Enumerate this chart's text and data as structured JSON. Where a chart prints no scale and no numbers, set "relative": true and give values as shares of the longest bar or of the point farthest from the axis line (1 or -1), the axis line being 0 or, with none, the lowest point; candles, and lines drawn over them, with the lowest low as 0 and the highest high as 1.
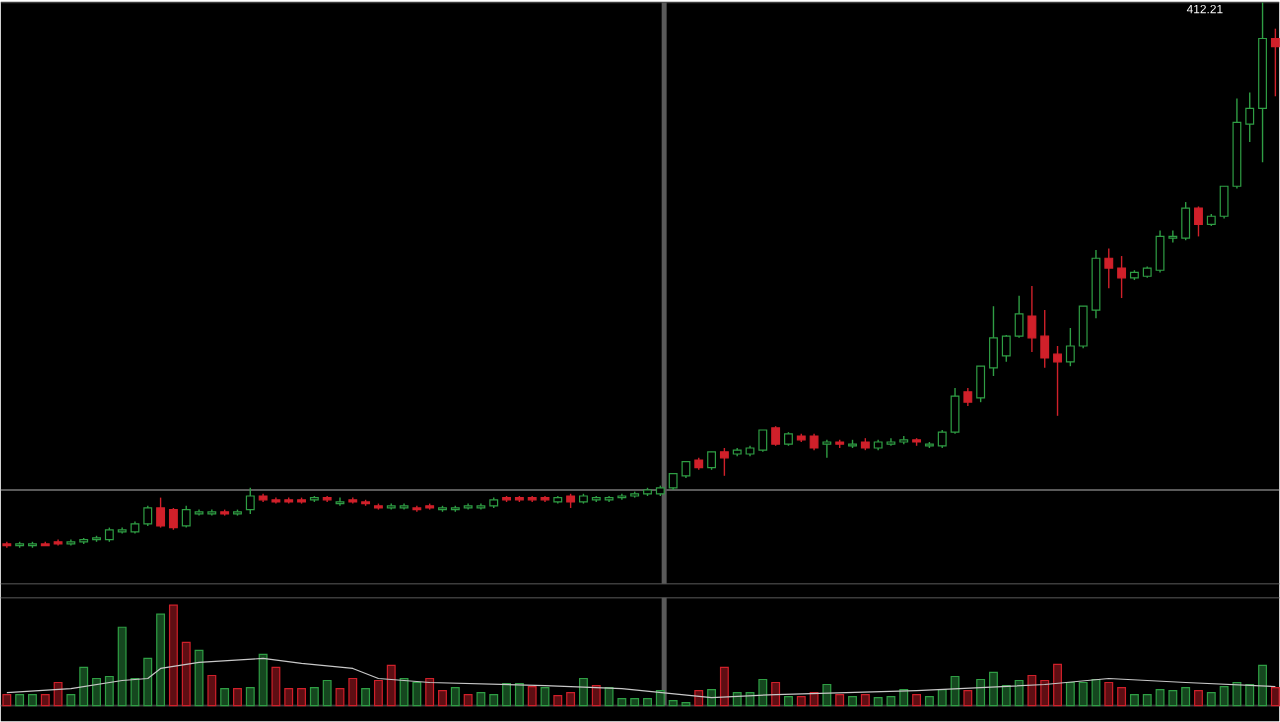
{
  "chart_data": [
    {
      "type": "candlestick",
      "relative": true,
      "categories": [
        null,
        null,
        null,
        null,
        null,
        null,
        null,
        null,
        null,
        null,
        null,
        null,
        null,
        null,
        null,
        null,
        null,
        null,
        null,
        null,
        null,
        null,
        null,
        null,
        null,
        null,
        null,
        null,
        null,
        null,
        null,
        null,
        null,
        null,
        null,
        null,
        null,
        null,
        null,
        null,
        null,
        null,
        null,
        null,
        null,
        null,
        null,
        null,
        null,
        null,
        null,
        null,
        null,
        null,
        null,
        null,
        null,
        null,
        null,
        null,
        null,
        null,
        null,
        null,
        null,
        null,
        null,
        null,
        null,
        null,
        null,
        null,
        null,
        null,
        null,
        null,
        null,
        null,
        null,
        null,
        null,
        null,
        null,
        null,
        null,
        null,
        null,
        null,
        null,
        null,
        null,
        null,
        null,
        null,
        null,
        null,
        null,
        null,
        null,
        null
      ],
      "ohlc": [
        [
          0.007,
          0.011,
          0,
          0.004
        ],
        [
          0.004,
          0.011,
          0,
          0.007
        ],
        [
          0.004,
          0.011,
          0,
          0.007
        ],
        [
          0.007,
          0.011,
          0.004,
          0.004
        ],
        [
          0.011,
          0.015,
          0.004,
          0.007
        ],
        [
          0.007,
          0.015,
          0.004,
          0.011
        ],
        [
          0.011,
          0.018,
          0.007,
          0.015
        ],
        [
          0.015,
          0.022,
          0.011,
          0.018
        ],
        [
          0.015,
          0.037,
          0.011,
          0.033
        ],
        [
          0.029,
          0.037,
          0.026,
          0.033
        ],
        [
          0.029,
          0.048,
          0.026,
          0.044
        ],
        [
          0.044,
          0.077,
          0.04,
          0.073
        ],
        [
          0.073,
          0.092,
          0.037,
          0.04
        ],
        [
          0.07,
          0.073,
          0.033,
          0.037
        ],
        [
          0.04,
          0.077,
          0.037,
          0.07
        ],
        [
          0.062,
          0.07,
          0.059,
          0.066
        ],
        [
          0.062,
          0.07,
          0.059,
          0.066
        ],
        [
          0.066,
          0.07,
          0.059,
          0.062
        ],
        [
          0.062,
          0.07,
          0.059,
          0.066
        ],
        [
          0.07,
          0.11,
          0.062,
          0.095
        ],
        [
          0.095,
          0.099,
          0.084,
          0.088
        ],
        [
          0.088,
          0.092,
          0.081,
          0.084
        ],
        [
          0.088,
          0.092,
          0.081,
          0.084
        ],
        [
          0.088,
          0.092,
          0.081,
          0.084
        ],
        [
          0.088,
          0.095,
          0.084,
          0.092
        ],
        [
          0.092,
          0.095,
          0.084,
          0.088
        ],
        [
          0.081,
          0.092,
          0.077,
          0.084
        ],
        [
          0.088,
          0.092,
          0.081,
          0.084
        ],
        [
          0.084,
          0.088,
          0.077,
          0.081
        ],
        [
          0.077,
          0.081,
          0.07,
          0.073
        ],
        [
          0.073,
          0.081,
          0.07,
          0.077
        ],
        [
          0.073,
          0.081,
          0.07,
          0.077
        ],
        [
          0.073,
          0.077,
          0.066,
          0.07
        ],
        [
          0.077,
          0.081,
          0.07,
          0.073
        ],
        [
          0.07,
          0.077,
          0.066,
          0.073
        ],
        [
          0.07,
          0.077,
          0.066,
          0.073
        ],
        [
          0.073,
          0.081,
          0.07,
          0.077
        ],
        [
          0.073,
          0.081,
          0.07,
          0.077
        ],
        [
          0.077,
          0.092,
          0.073,
          0.088
        ],
        [
          0.092,
          0.095,
          0.084,
          0.088
        ],
        [
          0.092,
          0.095,
          0.084,
          0.088
        ],
        [
          0.092,
          0.095,
          0.084,
          0.088
        ],
        [
          0.092,
          0.095,
          0.084,
          0.088
        ],
        [
          0.084,
          0.095,
          0.081,
          0.092
        ],
        [
          0.095,
          0.099,
          0.073,
          0.084
        ],
        [
          0.084,
          0.099,
          0.081,
          0.095
        ],
        [
          0.088,
          0.095,
          0.084,
          0.092
        ],
        [
          0.088,
          0.095,
          0.084,
          0.092
        ],
        [
          0.092,
          0.099,
          0.088,
          0.095
        ],
        [
          0.095,
          0.103,
          0.092,
          0.099
        ],
        [
          0.099,
          0.11,
          0.095,
          0.106
        ],
        [
          0.099,
          0.114,
          0.095,
          0.11
        ],
        [
          0.11,
          0.136,
          0.106,
          0.136
        ],
        [
          0.132,
          0.158,
          0.128,
          0.158
        ],
        [
          0.161,
          0.165,
          0.143,
          0.147
        ],
        [
          0.147,
          0.176,
          0.143,
          0.176
        ],
        [
          0.176,
          0.183,
          0.132,
          0.165
        ],
        [
          0.172,
          0.183,
          0.168,
          0.179
        ],
        [
          0.172,
          0.187,
          0.168,
          0.183
        ],
        [
          0.179,
          0.216,
          0.176,
          0.216
        ],
        [
          0.22,
          0.223,
          0.187,
          0.19
        ],
        [
          0.19,
          0.212,
          0.187,
          0.209
        ],
        [
          0.205,
          0.209,
          0.194,
          0.198
        ],
        [
          0.205,
          0.209,
          0.179,
          0.183
        ],
        [
          0.19,
          0.198,
          0.165,
          0.194
        ],
        [
          0.194,
          0.198,
          0.183,
          0.19
        ],
        [
          0.187,
          0.198,
          0.183,
          0.19
        ],
        [
          0.194,
          0.201,
          0.179,
          0.183
        ],
        [
          0.183,
          0.198,
          0.179,
          0.194
        ],
        [
          0.19,
          0.201,
          0.187,
          0.194
        ],
        [
          0.194,
          0.205,
          0.19,
          0.198
        ],
        [
          0.198,
          0.201,
          0.187,
          0.194
        ],
        [
          0.187,
          0.194,
          0.183,
          0.19
        ],
        [
          0.187,
          0.216,
          0.183,
          0.212
        ],
        [
          0.212,
          0.293,
          0.209,
          0.278
        ],
        [
          0.286,
          0.293,
          0.26,
          0.267
        ],
        [
          0.275,
          0.333,
          0.267,
          0.333
        ],
        [
          0.33,
          0.443,
          0.315,
          0.385
        ],
        [
          0.352,
          0.39,
          0.341,
          0.388
        ],
        [
          0.388,
          0.462,
          0.385,
          0.429
        ],
        [
          0.425,
          0.48,
          0.359,
          0.385
        ],
        [
          0.388,
          0.436,
          0.33,
          0.348
        ],
        [
          0.355,
          0.37,
          0.242,
          0.341
        ],
        [
          0.341,
          0.403,
          0.333,
          0.37
        ],
        [
          0.37,
          0.443,
          0.366,
          0.443
        ],
        [
          0.436,
          0.546,
          0.421,
          0.531
        ],
        [
          0.531,
          0.549,
          0.476,
          0.513
        ],
        [
          0.513,
          0.535,
          0.458,
          0.495
        ],
        [
          0.495,
          0.509,
          0.491,
          0.505
        ],
        [
          0.498,
          0.516,
          0.495,
          0.513
        ],
        [
          0.509,
          0.582,
          0.505,
          0.571
        ],
        [
          0.568,
          0.582,
          0.56,
          0.571
        ],
        [
          0.568,
          0.634,
          0.564,
          0.623
        ],
        [
          0.623,
          0.626,
          0.571,
          0.593
        ],
        [
          0.593,
          0.612,
          0.59,
          0.608
        ],
        [
          0.608,
          0.663,
          0.604,
          0.663
        ],
        [
          0.663,
          0.824,
          0.659,
          0.78
        ],
        [
          0.777,
          0.835,
          0.744,
          0.806
        ],
        [
          0.806,
          1,
          0.707,
          0.934
        ],
        [
          0.934,
          0.952,
          0.828,
          0.919
        ]
      ],
      "colors": [
        "#d0202a",
        "#2f9e44",
        "#2f9e44",
        "#d0202a",
        "#d0202a",
        "#2f9e44",
        "#2f9e44",
        "#2f9e44",
        "#2f9e44",
        "#2f9e44",
        "#2f9e44",
        "#2f9e44",
        "#d0202a",
        "#d0202a",
        "#2f9e44",
        "#2f9e44",
        "#2f9e44",
        "#d0202a",
        "#2f9e44",
        "#2f9e44",
        "#d0202a",
        "#d0202a",
        "#d0202a",
        "#d0202a",
        "#2f9e44",
        "#d0202a",
        "#2f9e44",
        "#d0202a",
        "#d0202a",
        "#d0202a",
        "#2f9e44",
        "#2f9e44",
        "#d0202a",
        "#d0202a",
        "#2f9e44",
        "#2f9e44",
        "#2f9e44",
        "#2f9e44",
        "#2f9e44",
        "#d0202a",
        "#d0202a",
        "#d0202a",
        "#d0202a",
        "#2f9e44",
        "#d0202a",
        "#2f9e44",
        "#2f9e44",
        "#2f9e44",
        "#2f9e44",
        "#2f9e44",
        "#2f9e44",
        "#2f9e44",
        "#2f9e44",
        "#2f9e44",
        "#d0202a",
        "#2f9e44",
        "#d0202a",
        "#2f9e44",
        "#2f9e44",
        "#2f9e44",
        "#d0202a",
        "#2f9e44",
        "#d0202a",
        "#d0202a",
        "#2f9e44",
        "#d0202a",
        "#2f9e44",
        "#d0202a",
        "#2f9e44",
        "#2f9e44",
        "#2f9e44",
        "#d0202a",
        "#2f9e44",
        "#2f9e44",
        "#2f9e44",
        "#d0202a",
        "#2f9e44",
        "#2f9e44",
        "#2f9e44",
        "#2f9e44",
        "#d0202a",
        "#d0202a",
        "#d0202a",
        "#2f9e44",
        "#2f9e44",
        "#2f9e44",
        "#d0202a",
        "#d0202a",
        "#2f9e44",
        "#2f9e44",
        "#2f9e44",
        "#2f9e44",
        "#2f9e44",
        "#d0202a",
        "#2f9e44",
        "#2f9e44",
        "#2f9e44",
        "#2f9e44",
        "#2f9e44",
        "#d0202a"
      ],
      "annotations": [
        "412.21"
      ],
      "ref_lines": [
        {
          "axis": "y",
          "value": 0.106,
          "color": "#b4b4b4"
        }
      ]
    },
    {
      "type": "bar",
      "relative": true,
      "categories": [
        null,
        null,
        null,
        null,
        null,
        null,
        null,
        null,
        null,
        null,
        null,
        null,
        null,
        null,
        null,
        null,
        null,
        null,
        null,
        null,
        null,
        null,
        null,
        null,
        null,
        null,
        null,
        null,
        null,
        null,
        null,
        null,
        null,
        null,
        null,
        null,
        null,
        null,
        null,
        null,
        null,
        null,
        null,
        null,
        null,
        null,
        null,
        null,
        null,
        null,
        null,
        null,
        null,
        null,
        null,
        null,
        null,
        null,
        null,
        null,
        null,
        null,
        null,
        null,
        null,
        null,
        null,
        null,
        null,
        null,
        null,
        null,
        null,
        null,
        null,
        null,
        null,
        null,
        null,
        null,
        null,
        null,
        null,
        null,
        null,
        null,
        null,
        null,
        null,
        null,
        null,
        null,
        null,
        null,
        null,
        null,
        null,
        null,
        null,
        null
      ],
      "series": [
        {
          "type": "bar",
          "values": [
            0.11,
            0.11,
            0.11,
            0.11,
            0.23,
            0.11,
            0.38,
            0.27,
            0.29,
            0.78,
            0.27,
            0.47,
            0.91,
            1,
            0.63,
            0.55,
            0.3,
            0.17,
            0.17,
            0.18,
            0.51,
            0.38,
            0.17,
            0.17,
            0.18,
            0.25,
            0.17,
            0.27,
            0.17,
            0.25,
            0.4,
            0.27,
            0.23,
            0.27,
            0.15,
            0.18,
            0.11,
            0.13,
            0.11,
            0.22,
            0.22,
            0.19,
            0.18,
            0.1,
            0.13,
            0.27,
            0.2,
            0.18,
            0.07,
            0.07,
            0.07,
            0.15,
            0.05,
            0.03,
            0.15,
            0.16,
            0.38,
            0.13,
            0.13,
            0.26,
            0.23,
            0.09,
            0.09,
            0.13,
            0.21,
            0.11,
            0.09,
            0.11,
            0.08,
            0.09,
            0.16,
            0.11,
            0.09,
            0.16,
            0.29,
            0.15,
            0.26,
            0.33,
            0.2,
            0.25,
            0.3,
            0.25,
            0.41,
            0.23,
            0.23,
            0.26,
            0.23,
            0.18,
            0.11,
            0.11,
            0.16,
            0.15,
            0.18,
            0.15,
            0.13,
            0.19,
            0.23,
            0.21,
            0.4,
            0.18
          ],
          "colors": [
            "#d0202a",
            "#2f9e44",
            "#2f9e44",
            "#d0202a",
            "#d0202a",
            "#2f9e44",
            "#2f9e44",
            "#2f9e44",
            "#2f9e44",
            "#2f9e44",
            "#2f9e44",
            "#2f9e44",
            "#2f9e44",
            "#d0202a",
            "#d0202a",
            "#2f9e44",
            "#d0202a",
            "#2f9e44",
            "#d0202a",
            "#2f9e44",
            "#2f9e44",
            "#d0202a",
            "#d0202a",
            "#d0202a",
            "#2f9e44",
            "#2f9e44",
            "#d0202a",
            "#d0202a",
            "#2f9e44",
            "#d0202a",
            "#d0202a",
            "#2f9e44",
            "#2f9e44",
            "#d0202a",
            "#d0202a",
            "#2f9e44",
            "#d0202a",
            "#2f9e44",
            "#2f9e44",
            "#2f9e44",
            "#2f9e44",
            "#d0202a",
            "#2f9e44",
            "#d0202a",
            "#d0202a",
            "#2f9e44",
            "#d0202a",
            "#2f9e44",
            "#2f9e44",
            "#2f9e44",
            "#2f9e44",
            "#2f9e44",
            "#2f9e44",
            "#2f9e44",
            "#d0202a",
            "#2f9e44",
            "#d0202a",
            "#2f9e44",
            "#2f9e44",
            "#2f9e44",
            "#d0202a",
            "#2f9e44",
            "#d0202a",
            "#d0202a",
            "#2f9e44",
            "#d0202a",
            "#2f9e44",
            "#d0202a",
            "#2f9e44",
            "#2f9e44",
            "#2f9e44",
            "#d0202a",
            "#2f9e44",
            "#2f9e44",
            "#2f9e44",
            "#d0202a",
            "#2f9e44",
            "#2f9e44",
            "#2f9e44",
            "#2f9e44",
            "#d0202a",
            "#d0202a",
            "#d0202a",
            "#2f9e44",
            "#2f9e44",
            "#2f9e44",
            "#d0202a",
            "#d0202a",
            "#2f9e44",
            "#2f9e44",
            "#2f9e44",
            "#2f9e44",
            "#2f9e44",
            "#d0202a",
            "#2f9e44",
            "#2f9e44",
            "#2f9e44",
            "#2f9e44",
            "#2f9e44",
            "#d0202a"
          ]
        },
        {
          "type": "line",
          "color": "#c8c8c8",
          "values": [
            0.13,
            null,
            null,
            null,
            null,
            0.17,
            null,
            null,
            null,
            0.25,
            null,
            0.27,
            0.37,
            null,
            null,
            0.43,
            null,
            null,
            null,
            null,
            0.47,
            null,
            null,
            0.42,
            null,
            null,
            null,
            0.37,
            null,
            0.27,
            null,
            null,
            null,
            0.23,
            null,
            null,
            null,
            null,
            null,
            null,
            null,
            null,
            0.2,
            null,
            null,
            null,
            null,
            null,
            0.17,
            null,
            null,
            null,
            null,
            null,
            null,
            0.08,
            null,
            null,
            null,
            null,
            0.11,
            null,
            null,
            null,
            null,
            null,
            null,
            null,
            null,
            null,
            null,
            0.15,
            null,
            null,
            null,
            null,
            null,
            null,
            null,
            null,
            null,
            0.21,
            null,
            null,
            null,
            null,
            0.27,
            null,
            null,
            null,
            null,
            null,
            0.23,
            null,
            null,
            null,
            null,
            null,
            null,
            0.19
          ]
        }
      ]
    }
  ]
}
